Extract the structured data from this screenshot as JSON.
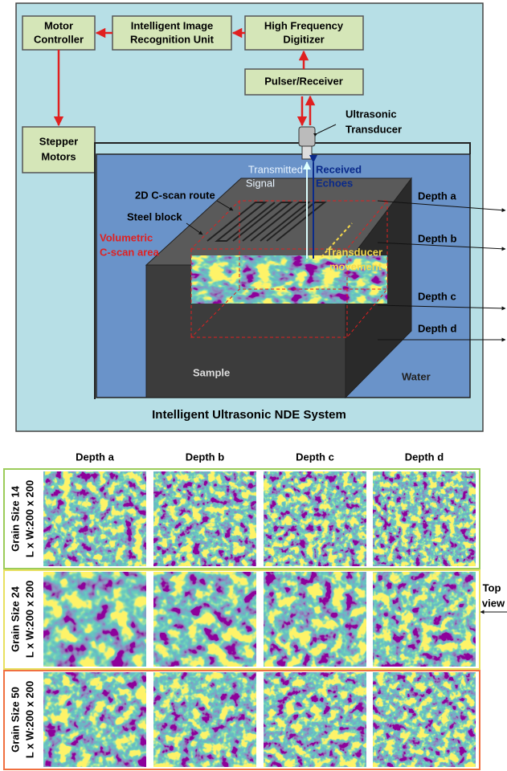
{
  "boxes": {
    "motor_controller": [
      "Motor",
      "Controller"
    ],
    "recognition_unit": [
      "Intelligent Image",
      "Recognition Unit"
    ],
    "digitizer": [
      "High Frequency",
      "Digitizer"
    ],
    "pulser": [
      "Pulser/Receiver"
    ],
    "stepper": [
      "Stepper",
      "Motors"
    ]
  },
  "labels": {
    "transducer": [
      "Ultrasonic",
      "Transducer"
    ],
    "transmitted": [
      "Transmitted",
      "Signal"
    ],
    "received": [
      "Received",
      "Echoes"
    ],
    "route": "2D C-scan route",
    "steel": "Steel block",
    "volumetric": [
      "Volumetric",
      "C-scan area"
    ],
    "movement": [
      "Transducer",
      "movement"
    ],
    "sample": "Sample",
    "water": "Water",
    "depths": [
      "Depth a",
      "Depth b",
      "Depth c",
      "Depth d"
    ]
  },
  "system_title": "Intelligent Ultrasonic NDE System",
  "grid": {
    "columns": [
      "Depth a",
      "Depth b",
      "Depth c",
      "Depth d"
    ],
    "rows": [
      {
        "grain": "Grain Size 14",
        "dims": "L x W:200 x 200"
      },
      {
        "grain": "Grain Size 24",
        "dims": "L x W:200 x 200"
      },
      {
        "grain": "Grain Size 50",
        "dims": "L x W:200 x 200"
      }
    ]
  },
  "top_view": [
    "Top",
    "view"
  ]
}
